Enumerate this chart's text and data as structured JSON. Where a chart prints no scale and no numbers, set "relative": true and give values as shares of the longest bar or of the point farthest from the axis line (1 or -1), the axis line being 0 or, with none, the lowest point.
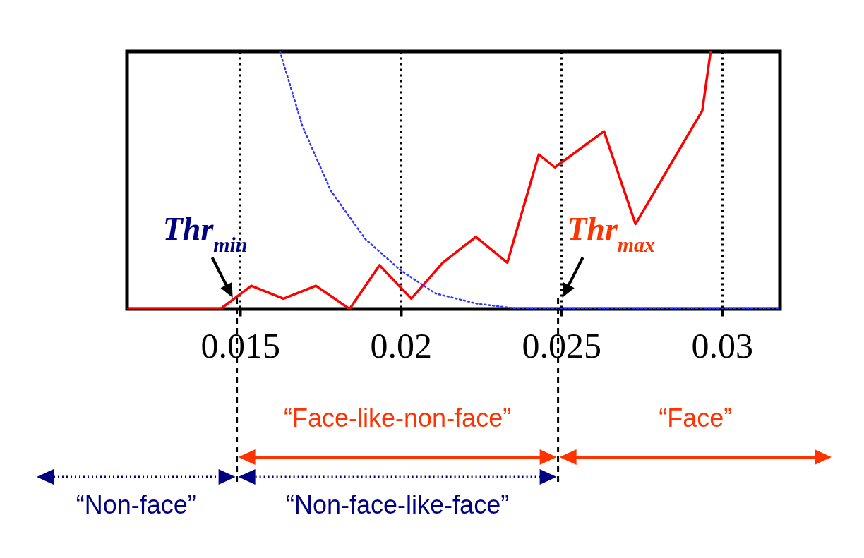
{
  "chart_data": {
    "type": "line",
    "relative": true,
    "xlim": [
      0.01148,
      0.03181
    ],
    "xticks": [
      0.015,
      0.02,
      0.025,
      0.03
    ],
    "grid": "x",
    "tick_labels": "x",
    "series": [
      {
        "color": "#ff0000",
        "line_style": "solid",
        "x": [
          0.01148,
          0.01439,
          0.01535,
          0.01635,
          0.01736,
          0.01841,
          0.01934,
          0.02033,
          0.02131,
          0.02234,
          0.02332,
          0.0243,
          0.0248,
          0.02633,
          0.02731,
          0.02939,
          0.02965
        ],
        "values": [
          0,
          0,
          0.09,
          0.04,
          0.09,
          0,
          0.17,
          0.04,
          0.18,
          0.28,
          0.18,
          0.6,
          0.55,
          0.69,
          0.33,
          0.77,
          1
        ]
      },
      {
        "color": "#3333ff",
        "line_style": "dotted",
        "x": [
          0.01624,
          0.01694,
          0.01782,
          0.01891,
          0.02,
          0.02109,
          0.0224,
          0.02371,
          0.03181
        ],
        "values": [
          1,
          0.71,
          0.46,
          0.27,
          0.15,
          0.06,
          0.02,
          0,
          0
        ]
      }
    ],
    "ref_lines": [
      {
        "axis": "x",
        "value": 0.0149,
        "label": "Thr$_{min}$",
        "color": "#000000",
        "line_style": "dashed"
      },
      {
        "axis": "x",
        "value": 0.0249,
        "label": "Thr$_{max}$",
        "color": "#000000",
        "line_style": "dashed"
      }
    ],
    "annotations": [
      "“Face-like-non-face”",
      "“Face”",
      "“Non-face”",
      "“Non-face-like-face”"
    ]
  }
}
